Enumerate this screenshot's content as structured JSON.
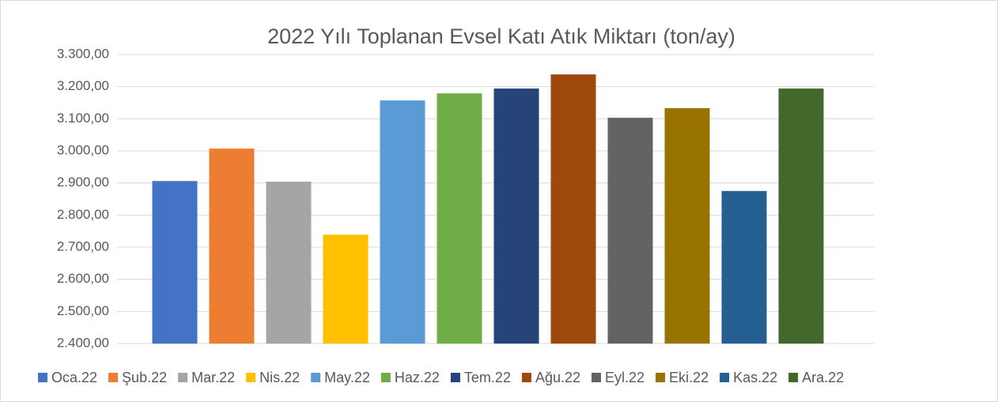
{
  "chart_data": {
    "type": "bar",
    "title": "2022 Yılı Toplanan Evsel Katı Atık Miktarı (ton/ay)",
    "categories": [
      "Oca.22",
      "Şub.22",
      "Mar.22",
      "Nis.22",
      "May.22",
      "Haz.22",
      "Tem.22",
      "Ağu.22",
      "Eyl.22",
      "Eki.22",
      "Kas.22",
      "Ara.22"
    ],
    "values": [
      2906,
      3007,
      2904,
      2739,
      3157,
      3179,
      3194,
      3238,
      3103,
      3133,
      2875,
      3194
    ],
    "colors": [
      "#4472c4",
      "#ed7d31",
      "#a5a5a5",
      "#ffc000",
      "#5b9bd5",
      "#70ad47",
      "#264478",
      "#9e480e",
      "#636363",
      "#997300",
      "#255e91",
      "#43682b"
    ],
    "ylim": [
      2400,
      3300
    ],
    "yticks": [
      {
        "value": 2400,
        "label": "2.400,00"
      },
      {
        "value": 2500,
        "label": "2.500,00"
      },
      {
        "value": 2600,
        "label": "2.600,00"
      },
      {
        "value": 2700,
        "label": "2.700,00"
      },
      {
        "value": 2800,
        "label": "2.800,00"
      },
      {
        "value": 2900,
        "label": "2.900,00"
      },
      {
        "value": 3000,
        "label": "3.000,00"
      },
      {
        "value": 3100,
        "label": "3.100,00"
      },
      {
        "value": 3200,
        "label": "3.200,00"
      },
      {
        "value": 3300,
        "label": "3.300,00"
      }
    ],
    "grid": true,
    "legend": "bottom"
  }
}
